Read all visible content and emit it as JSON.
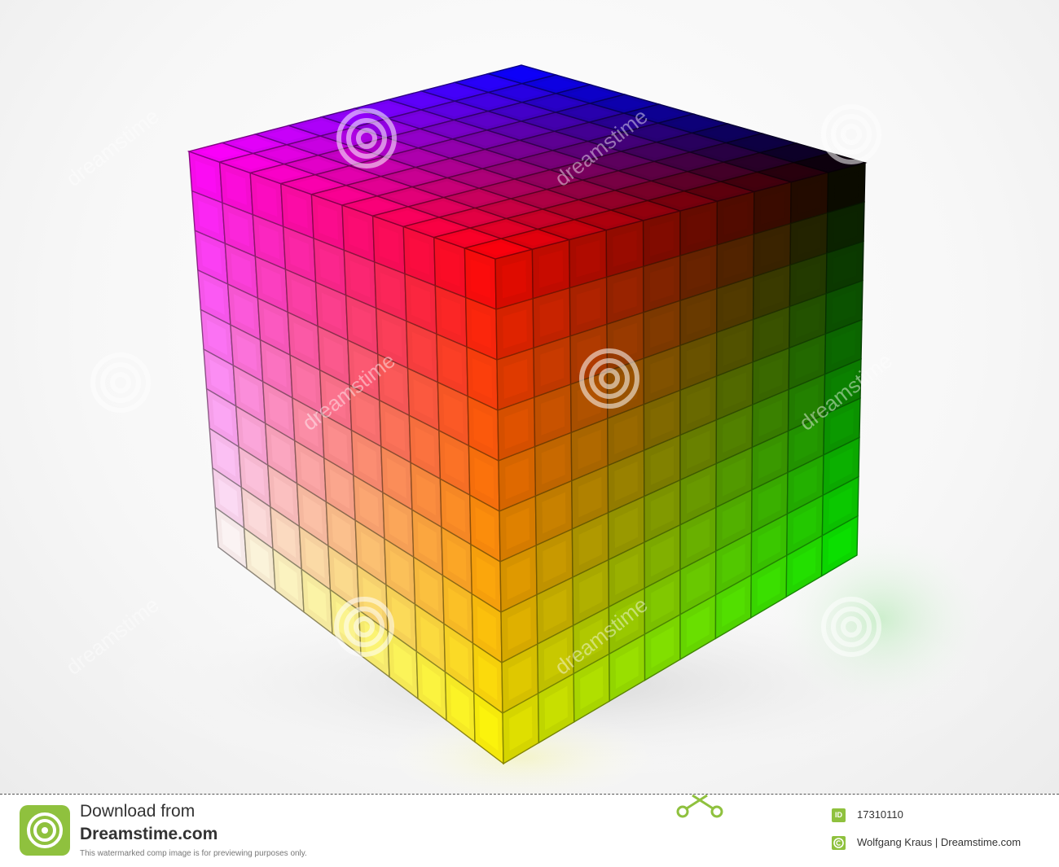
{
  "image": {
    "subject": "RGB color cube of small blocks",
    "grid_size": 10,
    "corner_colors": {
      "top_back": "#0000ff",
      "top_left": "#ff00ff",
      "top_front": "#ff0000",
      "top_right": "#000000",
      "bottom_left": "#ffffff",
      "bottom_front": "#ffff00",
      "bottom_right": "#00ff00"
    },
    "watermark_text": "dreamstime"
  },
  "footer": {
    "download_from": "Download from",
    "site_name": "Dreamstime.com",
    "preview_note": "This watermarked comp image is for previewing purposes only.",
    "id_label": "ID",
    "image_id": "17310110",
    "credit": "Wolfgang Kraus | Dreamstime.com",
    "accent_color": "#8fc13e"
  }
}
